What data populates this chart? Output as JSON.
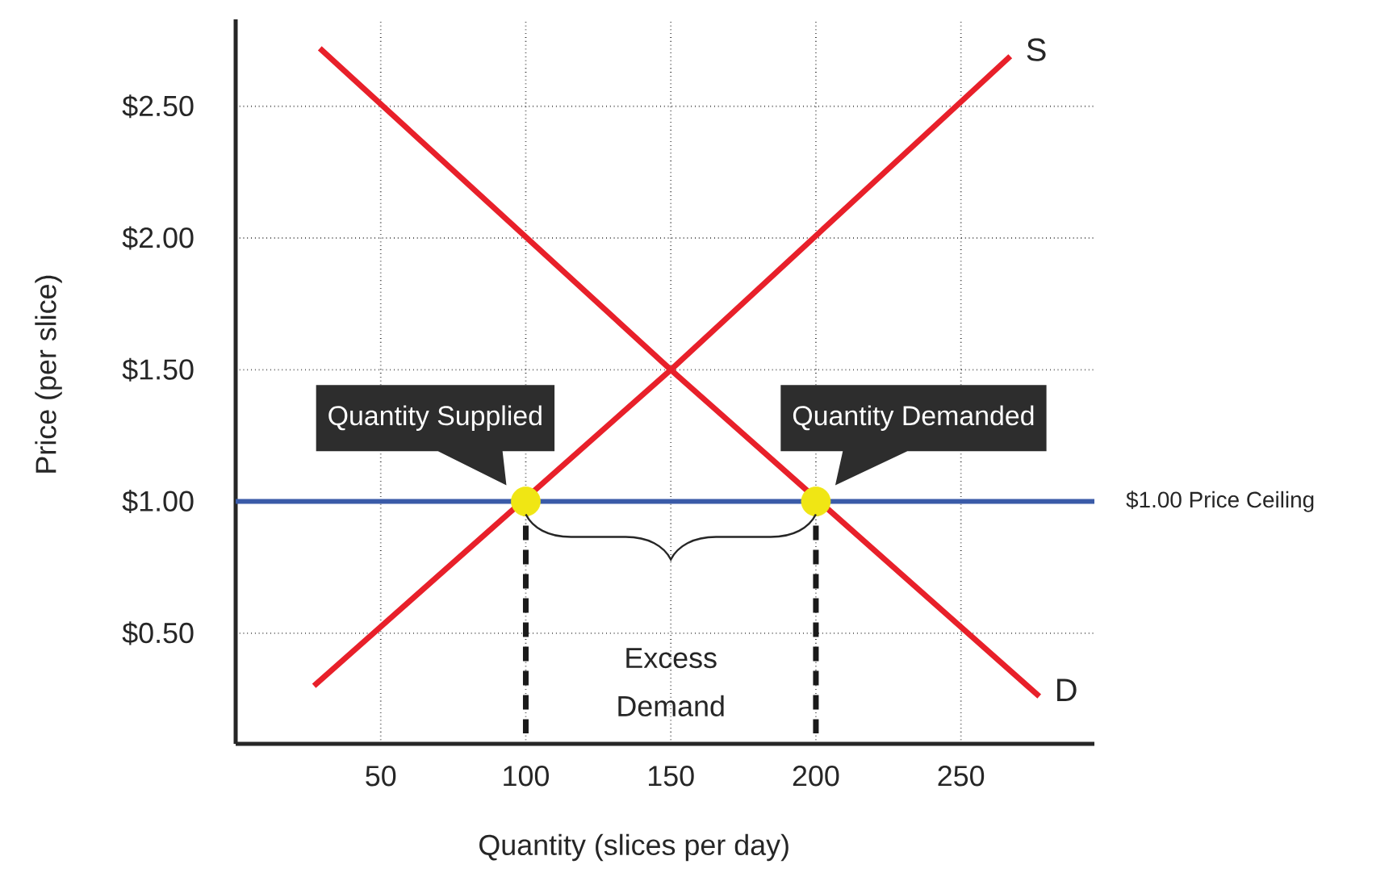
{
  "chart_data": {
    "type": "line",
    "xlabel": "Quantity (slices per day)",
    "ylabel": "Price (per slice)",
    "xlim": [
      0,
      296
    ],
    "ylim": [
      0.08,
      2.83
    ],
    "xticks": [
      50,
      100,
      150,
      200,
      250
    ],
    "yticks": [
      {
        "value": 0.5,
        "label": "$0.50"
      },
      {
        "value": 1.0,
        "label": "$1.00"
      },
      {
        "value": 1.5,
        "label": "$1.50"
      },
      {
        "value": 2.0,
        "label": "$2.00"
      },
      {
        "value": 2.5,
        "label": "$2.50"
      }
    ],
    "grid": true,
    "series": [
      {
        "name": "S",
        "color": "#e8202a",
        "x": [
          27,
          150,
          267
        ],
        "values": [
          0.3,
          1.5,
          2.69
        ]
      },
      {
        "name": "D",
        "color": "#e8202a",
        "x": [
          29,
          150,
          277
        ],
        "values": [
          2.72,
          1.5,
          0.26
        ]
      },
      {
        "type": "line",
        "line_style": "dashed",
        "color": "#1a1a1a",
        "x": [
          100,
          100
        ],
        "values": [
          1.0,
          0.12
        ]
      },
      {
        "type": "line",
        "line_style": "dashed",
        "color": "#1a1a1a",
        "x": [
          200,
          200
        ],
        "values": [
          1.0,
          0.12
        ]
      },
      {
        "type": "scatter",
        "marker": "circle",
        "color": "#f0e614",
        "x": [
          100,
          200
        ],
        "values": [
          1.0,
          1.0
        ]
      }
    ],
    "ref_lines": [
      {
        "axis": "y",
        "value": 1.0,
        "label": "$1.00 Price Ceiling",
        "color": "#3a5ba8"
      }
    ],
    "annotations": [
      {
        "text": "Quantity Supplied",
        "x": 100,
        "y": 1.0
      },
      {
        "text": "Quantity Demanded",
        "x": 200,
        "y": 1.0
      },
      "Excess Demand"
    ]
  }
}
